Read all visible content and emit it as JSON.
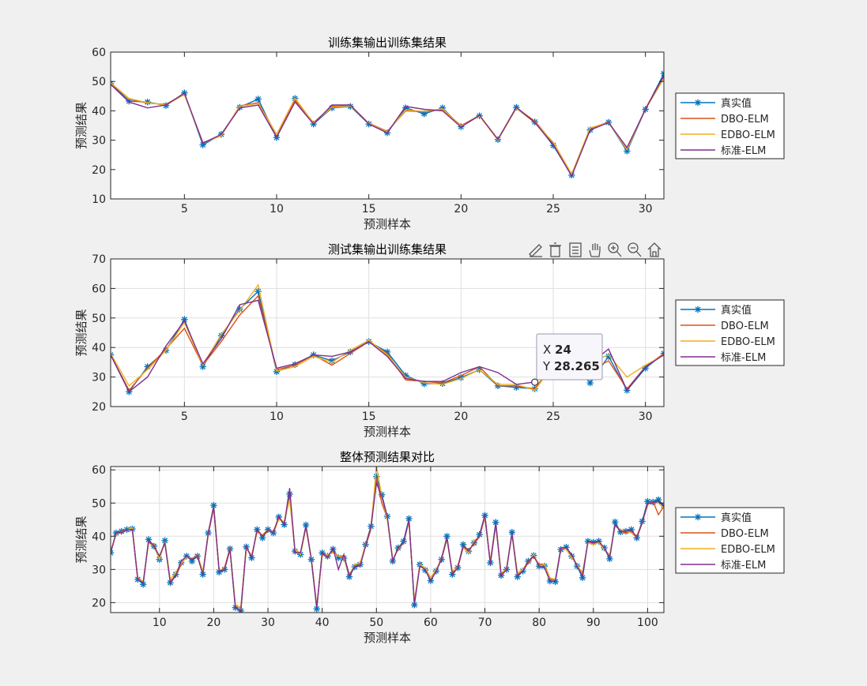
{
  "legend_labels": [
    "真实值",
    "DBO-ELM",
    "EDBO-ELM",
    "标准-ELM"
  ],
  "colors": {
    "true": "#0072BD",
    "dbo": "#D95319",
    "edbo": "#EDB120",
    "std": "#7E2F8E"
  },
  "toolbar_icons": [
    "brush-icon",
    "bin-icon",
    "link-icon",
    "pan-icon",
    "zoom-in-icon",
    "zoom-out-icon",
    "home-icon"
  ],
  "datatip": {
    "x_label": "X",
    "x_value": "24",
    "y_label": "Y",
    "y_value": "28.265"
  },
  "chart_data": [
    {
      "type": "line",
      "title": "训练集输出训练集结果",
      "xlabel": "预测样本",
      "ylabel": "预测结果",
      "xlim": [
        1,
        31
      ],
      "ylim": [
        10,
        60
      ],
      "xticks": [
        5,
        10,
        15,
        20,
        25,
        30
      ],
      "yticks": [
        10,
        20,
        30,
        40,
        50,
        60
      ],
      "grid": false,
      "legend_position": "outside-right",
      "series": [
        {
          "name": "真实值",
          "values": [
            49.3,
            43.3,
            43.0,
            41.8,
            46.1,
            28.4,
            32.0,
            41.2,
            44.0,
            30.9,
            44.2,
            35.5,
            41.0,
            41.5,
            35.5,
            32.5,
            41.0,
            39.0,
            41.0,
            34.6,
            38.3,
            30.2,
            41.2,
            36.2,
            28.2,
            18.1,
            33.5,
            36.1,
            26.3,
            40.5,
            52.7
          ]
        },
        {
          "name": "DBO-ELM",
          "values": [
            49.5,
            44.0,
            42.6,
            42.2,
            45.8,
            29.2,
            31.5,
            41.7,
            42.8,
            31.9,
            43.6,
            36.0,
            41.5,
            41.8,
            35.8,
            33.0,
            40.0,
            39.7,
            40.5,
            35.0,
            38.4,
            30.3,
            41.0,
            36.5,
            29.0,
            18.3,
            34.0,
            36.2,
            26.8,
            40.8,
            51.8
          ]
        },
        {
          "name": "EDBO-ELM",
          "values": [
            49.6,
            44.2,
            42.8,
            42.0,
            45.5,
            29.0,
            31.6,
            41.5,
            42.5,
            32.0,
            44.3,
            35.8,
            41.2,
            41.7,
            35.7,
            32.8,
            40.3,
            39.8,
            40.7,
            34.8,
            38.2,
            30.0,
            40.8,
            36.0,
            29.3,
            18.5,
            34.2,
            36.0,
            26.8,
            40.6,
            51.0
          ]
        },
        {
          "name": "标准-ELM",
          "values": [
            49.0,
            43.0,
            41.0,
            42.0,
            46.0,
            29.0,
            32.0,
            41.0,
            42.0,
            31.0,
            43.0,
            35.5,
            42.0,
            42.0,
            35.5,
            32.5,
            41.5,
            40.5,
            40.0,
            34.5,
            38.5,
            30.3,
            41.2,
            36.0,
            28.5,
            17.8,
            33.5,
            36.0,
            27.5,
            40.5,
            52.0
          ]
        }
      ]
    },
    {
      "type": "line",
      "title": "测试集输出训练集结果",
      "xlabel": "预测样本",
      "ylabel": "预测结果",
      "xlim": [
        1,
        31
      ],
      "ylim": [
        20,
        70
      ],
      "xticks": [
        5,
        10,
        15,
        20,
        25,
        30
      ],
      "yticks": [
        20,
        30,
        40,
        50,
        60,
        70
      ],
      "grid": true,
      "legend_position": "outside-right",
      "series": [
        {
          "name": "真实值",
          "values": [
            37.5,
            25.0,
            33.5,
            39.0,
            49.5,
            33.5,
            44.0,
            53.0,
            59.0,
            31.8,
            34.2,
            37.5,
            35.5,
            38.5,
            42.0,
            38.5,
            30.5,
            27.7,
            27.8,
            29.8,
            32.5,
            27.0,
            26.5,
            26.0,
            34.0,
            35.0,
            28.0,
            37.0,
            25.5,
            33.0,
            38.0
          ]
        },
        {
          "name": "DBO-ELM",
          "values": [
            37.5,
            25.5,
            33.0,
            39.5,
            46.5,
            34.0,
            42.0,
            51.0,
            57.5,
            32.5,
            34.0,
            37.5,
            34.0,
            38.0,
            42.0,
            38.0,
            29.0,
            28.5,
            28.0,
            30.5,
            33.5,
            27.0,
            27.0,
            26.0,
            34.5,
            35.0,
            32.0,
            35.5,
            26.0,
            33.5,
            38.0
          ]
        },
        {
          "name": "EDBO-ELM",
          "values": [
            38.0,
            27.0,
            32.5,
            39.0,
            48.5,
            34.0,
            44.5,
            52.5,
            61.2,
            32.0,
            33.5,
            37.0,
            35.0,
            39.0,
            42.5,
            37.5,
            30.0,
            28.0,
            27.5,
            29.5,
            32.5,
            27.5,
            27.5,
            25.5,
            34.0,
            35.0,
            35.0,
            37.5,
            30.0,
            34.0,
            37.5
          ]
        },
        {
          "name": "标准-ELM",
          "values": [
            37.5,
            25.0,
            30.0,
            40.5,
            49.0,
            34.5,
            43.0,
            54.5,
            56.0,
            33.0,
            34.5,
            37.5,
            37.0,
            38.5,
            42.0,
            37.0,
            29.5,
            28.5,
            28.5,
            31.5,
            33.5,
            31.5,
            27.5,
            28.3,
            33.5,
            36.5,
            34.5,
            39.5,
            25.5,
            33.5,
            37.5
          ]
        }
      ]
    },
    {
      "type": "line",
      "title": "整体预测结果对比",
      "xlabel": "预测样本",
      "ylabel": "预测结果",
      "xlim": [
        1,
        103
      ],
      "ylim": [
        17,
        61
      ],
      "xticks": [
        10,
        20,
        30,
        40,
        50,
        60,
        70,
        80,
        90,
        100
      ],
      "yticks": [
        20,
        30,
        40,
        50,
        60
      ],
      "grid": true,
      "legend_position": "outside-right",
      "series": [
        {
          "name": "真实值",
          "values": [
            35.0,
            41.0,
            41.5,
            42.0,
            42.2,
            27.0,
            25.5,
            39.0,
            37.0,
            33.0,
            38.7,
            26.0,
            28.5,
            32.0,
            34.0,
            32.5,
            34.0,
            28.5,
            41.0,
            49.3,
            29.2,
            30.0,
            36.2,
            18.5,
            17.5,
            36.8,
            33.5,
            42.0,
            39.5,
            42.0,
            41.0,
            45.8,
            43.5,
            52.7,
            35.5,
            34.5,
            43.4,
            33.0,
            18.1,
            35.0,
            34.0,
            36.1,
            33.5,
            33.4,
            27.8,
            30.8,
            31.5,
            37.5,
            43.0,
            58.0,
            52.5,
            46.0,
            32.5,
            36.5,
            38.5,
            45.3,
            19.3,
            31.5,
            29.8,
            26.6,
            29.5,
            33.0,
            40.0,
            28.5,
            30.5,
            37.5,
            35.5,
            38.0,
            40.5,
            46.3,
            32.0,
            44.2,
            28.2,
            30.0,
            41.2,
            27.8,
            29.5,
            32.5,
            34.2,
            31.0,
            31.0,
            26.5,
            26.3,
            36.0,
            36.7,
            34.0,
            31.0,
            27.5,
            38.5,
            38.2,
            38.5,
            36.5,
            33.2,
            44.3,
            41.3,
            41.5,
            42.0,
            39.5,
            44.5,
            50.5,
            50.3,
            51.0,
            49.2
          ]
        },
        {
          "name": "DBO-ELM",
          "values": [
            35.5,
            40.5,
            41.5,
            42.0,
            42.0,
            27.5,
            26.0,
            38.5,
            37.5,
            33.5,
            38.0,
            26.5,
            28.0,
            31.5,
            34.0,
            33.0,
            34.5,
            29.0,
            40.5,
            48.5,
            29.5,
            30.5,
            36.5,
            19.0,
            18.5,
            36.5,
            34.0,
            41.5,
            40.0,
            41.5,
            41.5,
            45.5,
            44.0,
            51.5,
            35.5,
            35.0,
            43.0,
            33.5,
            18.5,
            34.5,
            34.0,
            35.5,
            34.0,
            34.0,
            28.5,
            31.0,
            31.5,
            37.0,
            42.0,
            57.5,
            50.0,
            45.5,
            33.0,
            36.0,
            38.0,
            44.5,
            20.0,
            31.0,
            30.0,
            27.5,
            29.5,
            33.5,
            39.5,
            29.0,
            31.0,
            37.0,
            36.0,
            37.5,
            40.0,
            45.5,
            32.5,
            43.5,
            28.5,
            30.5,
            40.5,
            28.5,
            29.5,
            32.0,
            34.0,
            31.5,
            31.5,
            27.0,
            27.0,
            36.0,
            36.5,
            34.5,
            31.0,
            29.0,
            38.0,
            38.0,
            38.0,
            36.0,
            34.0,
            43.5,
            41.5,
            41.0,
            41.5,
            40.0,
            44.0,
            49.5,
            50.5,
            46.5,
            49.0
          ]
        },
        {
          "name": "EDBO-ELM",
          "values": [
            35.0,
            40.8,
            41.0,
            42.0,
            42.5,
            27.0,
            26.5,
            38.0,
            37.0,
            33.0,
            38.5,
            27.0,
            29.0,
            32.0,
            33.5,
            33.5,
            34.0,
            29.5,
            41.0,
            49.0,
            30.0,
            30.0,
            36.0,
            19.5,
            18.0,
            36.0,
            34.5,
            41.0,
            40.5,
            42.0,
            41.0,
            45.0,
            44.5,
            51.0,
            36.0,
            34.5,
            42.5,
            33.5,
            19.0,
            34.0,
            34.5,
            35.0,
            34.0,
            33.5,
            28.0,
            31.5,
            32.0,
            37.5,
            42.5,
            61.2,
            52.0,
            45.0,
            33.0,
            36.5,
            38.0,
            44.5,
            20.5,
            31.5,
            30.5,
            27.5,
            30.0,
            33.0,
            39.0,
            29.5,
            30.5,
            36.5,
            35.0,
            38.5,
            40.0,
            46.0,
            32.0,
            43.0,
            29.0,
            30.0,
            41.0,
            29.0,
            30.0,
            32.5,
            34.5,
            31.0,
            31.5,
            27.5,
            27.0,
            36.5,
            36.0,
            33.5,
            31.5,
            28.5,
            38.0,
            37.5,
            38.0,
            36.0,
            34.5,
            43.0,
            42.0,
            41.5,
            41.0,
            39.5,
            44.0,
            50.0,
            50.0,
            50.0,
            48.5
          ]
        },
        {
          "name": "标准-ELM",
          "values": [
            35.0,
            41.0,
            41.0,
            42.0,
            42.0,
            27.0,
            26.0,
            38.5,
            37.0,
            34.0,
            38.0,
            26.0,
            28.0,
            32.5,
            34.0,
            33.0,
            34.0,
            28.5,
            41.0,
            49.0,
            29.5,
            30.0,
            36.0,
            18.5,
            17.5,
            37.0,
            33.5,
            42.0,
            40.0,
            42.0,
            41.0,
            46.0,
            43.5,
            54.5,
            35.0,
            35.0,
            43.0,
            33.0,
            18.5,
            35.0,
            33.5,
            36.5,
            30.0,
            34.5,
            28.0,
            31.0,
            31.0,
            37.0,
            43.0,
            56.0,
            52.0,
            46.0,
            32.5,
            36.5,
            38.0,
            45.0,
            19.5,
            31.0,
            30.0,
            26.5,
            29.5,
            33.0,
            39.5,
            28.5,
            30.5,
            37.0,
            35.5,
            38.0,
            40.0,
            46.5,
            31.5,
            44.0,
            28.0,
            30.0,
            41.0,
            28.0,
            29.5,
            32.5,
            34.0,
            31.0,
            30.5,
            26.5,
            26.5,
            36.5,
            36.5,
            34.5,
            31.0,
            28.0,
            38.5,
            38.0,
            38.5,
            36.5,
            33.5,
            43.5,
            41.5,
            41.5,
            42.0,
            39.5,
            44.0,
            50.0,
            50.0,
            50.5,
            49.0
          ]
        }
      ]
    }
  ]
}
